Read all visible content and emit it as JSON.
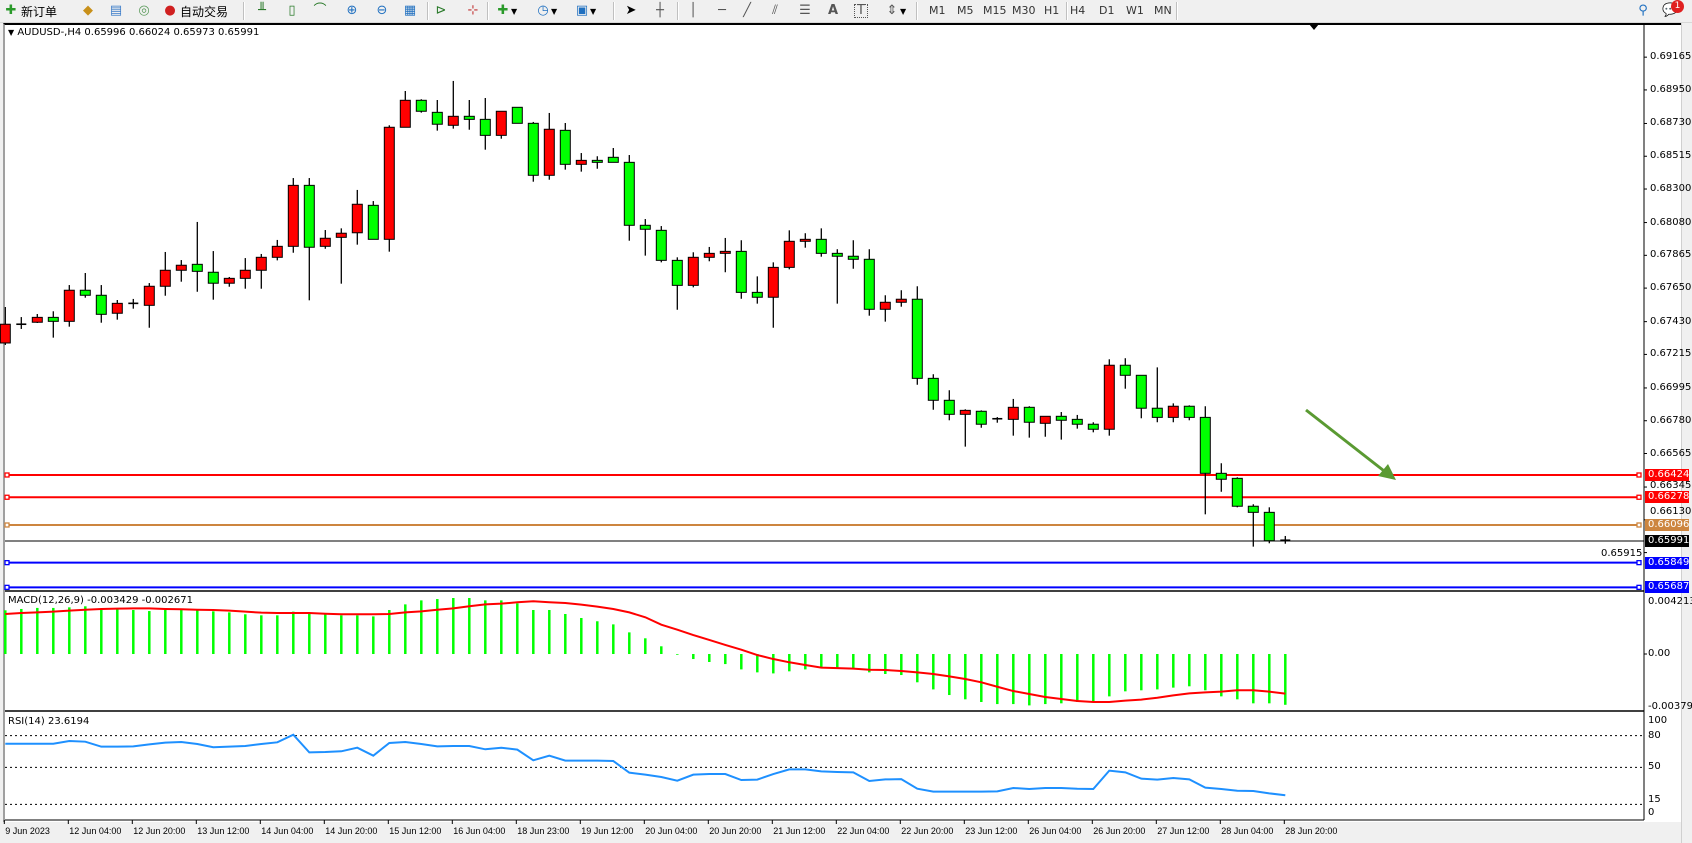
{
  "toolbar": {
    "new_order_label": "新订单",
    "auto_trading_label": "自动交易",
    "periods": [
      "M1",
      "M5",
      "M15",
      "M30",
      "H1",
      "H4",
      "D1",
      "W1",
      "MN"
    ],
    "notification_count": "1",
    "icons": [
      "new-order-icon",
      "market-watch-icon",
      "navigator-icon",
      "signals-icon",
      "auto-trading-icon",
      "bar-chart-icon",
      "candlestick-icon",
      "line-chart-icon",
      "zoom-in-icon",
      "zoom-out-icon",
      "tile-windows-icon",
      "auto-scroll-icon",
      "chart-shift-icon",
      "indicators-icon",
      "periods-clock-icon",
      "templates-icon",
      "cursor-icon",
      "crosshair-icon",
      "vertical-line-icon",
      "horizontal-line-icon",
      "trendline-icon",
      "equidistant-channel-icon",
      "fibonacci-icon",
      "text-icon",
      "text-label-icon",
      "arrows-icon",
      "search-icon",
      "chat-icon"
    ]
  },
  "chart": {
    "header": "AUDUSD-,H4  0.65996 0.66024 0.65973 0.65991"
  },
  "chart_data": [
    {
      "type": "candlestick",
      "symbol": "AUDUSD-",
      "timeframe": "H4",
      "up_color": "#ff0000",
      "down_color": "#00ff00",
      "ohlc": [
        [
          0.6729,
          0.67526,
          0.67277,
          0.67413
        ],
        [
          0.6741,
          0.6746,
          0.67382,
          0.67413
        ],
        [
          0.67426,
          0.6748,
          0.67421,
          0.67458
        ],
        [
          0.67458,
          0.67498,
          0.67325,
          0.67432
        ],
        [
          0.67432,
          0.6767,
          0.67397,
          0.67636
        ],
        [
          0.67636,
          0.67749,
          0.67587,
          0.67603
        ],
        [
          0.67603,
          0.6767,
          0.67423,
          0.67478
        ],
        [
          0.67485,
          0.67572,
          0.67443,
          0.6755
        ],
        [
          0.6755,
          0.67579,
          0.67515,
          0.67547
        ],
        [
          0.67537,
          0.67683,
          0.6739,
          0.67662
        ],
        [
          0.67662,
          0.67887,
          0.676,
          0.67767
        ],
        [
          0.67767,
          0.67834,
          0.67692,
          0.678
        ],
        [
          0.67806,
          0.68084,
          0.67626,
          0.6776
        ],
        [
          0.67754,
          0.67893,
          0.67574,
          0.67682
        ],
        [
          0.67682,
          0.67723,
          0.67659,
          0.67714
        ],
        [
          0.67714,
          0.67847,
          0.67646,
          0.67767
        ],
        [
          0.67767,
          0.67874,
          0.67646,
          0.67852
        ],
        [
          0.67852,
          0.67966,
          0.67832,
          0.67924
        ],
        [
          0.67924,
          0.68372,
          0.67882,
          0.68324
        ],
        [
          0.68324,
          0.68372,
          0.6757,
          0.67918
        ],
        [
          0.67924,
          0.68031,
          0.67908,
          0.67977
        ],
        [
          0.67983,
          0.68042,
          0.67679,
          0.6801
        ],
        [
          0.68013,
          0.68294,
          0.67935,
          0.682
        ],
        [
          0.68193,
          0.68221,
          0.6797,
          0.6797
        ],
        [
          0.6797,
          0.68718,
          0.67889,
          0.68705
        ],
        [
          0.68705,
          0.68943,
          0.68705,
          0.68882
        ],
        [
          0.68882,
          0.68889,
          0.68801,
          0.6881
        ],
        [
          0.68803,
          0.68884,
          0.68683,
          0.68725
        ],
        [
          0.68718,
          0.69009,
          0.68696,
          0.68777
        ],
        [
          0.68777,
          0.68884,
          0.68689,
          0.68757
        ],
        [
          0.68757,
          0.68897,
          0.68558,
          0.68652
        ],
        [
          0.68652,
          0.6881,
          0.6863,
          0.6881
        ],
        [
          0.68836,
          0.68836,
          0.68731,
          0.68731
        ],
        [
          0.68731,
          0.6874,
          0.68348,
          0.6839
        ],
        [
          0.6839,
          0.68799,
          0.68361,
          0.68692
        ],
        [
          0.68685,
          0.68733,
          0.68427,
          0.68462
        ],
        [
          0.68462,
          0.68536,
          0.68414,
          0.68488
        ],
        [
          0.68488,
          0.68515,
          0.68433,
          0.68475
        ],
        [
          0.68508,
          0.68569,
          0.68475,
          0.68475
        ],
        [
          0.68475,
          0.68523,
          0.67961,
          0.68062
        ],
        [
          0.68062,
          0.68103,
          0.67863,
          0.68036
        ],
        [
          0.68029,
          0.68057,
          0.67819,
          0.67832
        ],
        [
          0.67832,
          0.67852,
          0.67508,
          0.67668
        ],
        [
          0.67668,
          0.67885,
          0.67655,
          0.67852
        ],
        [
          0.67852,
          0.6792,
          0.67826,
          0.67878
        ],
        [
          0.67878,
          0.67979,
          0.67754,
          0.67891
        ],
        [
          0.67891,
          0.67964,
          0.6758,
          0.67622
        ],
        [
          0.67622,
          0.67727,
          0.67548,
          0.6759
        ],
        [
          0.6759,
          0.67819,
          0.6739,
          0.67786
        ],
        [
          0.67786,
          0.68029,
          0.67773,
          0.67957
        ],
        [
          0.67957,
          0.6801,
          0.67915,
          0.6797
        ],
        [
          0.6797,
          0.68042,
          0.67856,
          0.67878
        ],
        [
          0.67878,
          0.67905,
          0.67548,
          0.67859
        ],
        [
          0.67859,
          0.67964,
          0.67777,
          0.67839
        ],
        [
          0.67839,
          0.67905,
          0.67469,
          0.67511
        ],
        [
          0.67511,
          0.67603,
          0.6743,
          0.67557
        ],
        [
          0.67557,
          0.67636,
          0.67528,
          0.67577
        ],
        [
          0.67577,
          0.67662,
          0.67016,
          0.67058
        ],
        [
          0.67058,
          0.67085,
          0.66852,
          0.66914
        ],
        [
          0.66914,
          0.6698,
          0.66783,
          0.66822
        ],
        [
          0.66822,
          0.66855,
          0.6661,
          0.66848
        ],
        [
          0.66842,
          0.66848,
          0.66734,
          0.66757
        ],
        [
          0.6679,
          0.66804,
          0.66767,
          0.66793
        ],
        [
          0.66789,
          0.66923,
          0.66682,
          0.66868
        ],
        [
          0.66868,
          0.66875,
          0.66669,
          0.6677
        ],
        [
          0.66763,
          0.66809,
          0.66675,
          0.66809
        ],
        [
          0.66809,
          0.66837,
          0.66656,
          0.66783
        ],
        [
          0.66789,
          0.66818,
          0.66728,
          0.66757
        ],
        [
          0.66757,
          0.6677,
          0.66704,
          0.66724
        ],
        [
          0.66724,
          0.67183,
          0.66682,
          0.67144
        ],
        [
          0.67144,
          0.6719,
          0.6699,
          0.67078
        ],
        [
          0.67078,
          0.67078,
          0.66796,
          0.66862
        ],
        [
          0.66862,
          0.6713,
          0.6677,
          0.66802
        ],
        [
          0.66802,
          0.66894,
          0.6677,
          0.66875
        ],
        [
          0.66875,
          0.66881,
          0.66783,
          0.66802
        ],
        [
          0.66802,
          0.66875,
          0.66166,
          0.66435
        ],
        [
          0.66435,
          0.66501,
          0.66314,
          0.66396
        ],
        [
          0.66402,
          0.66409,
          0.66212,
          0.66219
        ],
        [
          0.66219,
          0.66232,
          0.65954,
          0.66179
        ],
        [
          0.66179,
          0.66212,
          0.65976,
          0.65993
        ],
        [
          0.65996,
          0.66024,
          0.65973,
          0.65991
        ]
      ],
      "y_ticks": [
        "0.69165",
        "0.68950",
        "0.68730",
        "0.68515",
        "0.68300",
        "0.68080",
        "0.67865",
        "0.67650",
        "0.67430",
        "0.67215",
        "0.66995",
        "0.66780",
        "0.66565",
        "0.66345",
        "0.66130",
        "0.65915"
      ],
      "x_ticks": [
        {
          "label": "9 Jun 2023",
          "bar": 0
        },
        {
          "label": "12 Jun 04:00",
          "bar": 4
        },
        {
          "label": "12 Jun 20:00",
          "bar": 8
        },
        {
          "label": "13 Jun 12:00",
          "bar": 12
        },
        {
          "label": "14 Jun 04:00",
          "bar": 16
        },
        {
          "label": "14 Jun 20:00",
          "bar": 20
        },
        {
          "label": "15 Jun 12:00",
          "bar": 24
        },
        {
          "label": "16 Jun 04:00",
          "bar": 28
        },
        {
          "label": "18 Jun 23:00",
          "bar": 32
        },
        {
          "label": "19 Jun 12:00",
          "bar": 36
        },
        {
          "label": "20 Jun 04:00",
          "bar": 40
        },
        {
          "label": "20 Jun 20:00",
          "bar": 44
        },
        {
          "label": "21 Jun 12:00",
          "bar": 48
        },
        {
          "label": "22 Jun 04:00",
          "bar": 52
        },
        {
          "label": "22 Jun 20:00",
          "bar": 56
        },
        {
          "label": "23 Jun 12:00",
          "bar": 60
        },
        {
          "label": "26 Jun 04:00",
          "bar": 64
        },
        {
          "label": "26 Jun 20:00",
          "bar": 68
        },
        {
          "label": "27 Jun 12:00",
          "bar": 72
        },
        {
          "label": "28 Jun 04:00",
          "bar": 76
        },
        {
          "label": "28 Jun 20:00",
          "bar": 80
        }
      ],
      "price_lines": [
        {
          "value": "0.66424",
          "color": "#ff0000"
        },
        {
          "value": "0.66278",
          "color": "#ff0000"
        },
        {
          "value": "0.66096",
          "color": "#cd853f"
        },
        {
          "value": "0.65849",
          "color": "#0000ff"
        },
        {
          "value": "0.65687",
          "color": "#0000ff"
        }
      ],
      "bid_line": {
        "value": "0.65991",
        "color": "#000000"
      },
      "arrow_color": "#5a9a32"
    },
    {
      "type": "bar+line",
      "label": "MACD(12,26,9) -0.003429 -0.002671",
      "ylim": [
        -0.003792,
        0.004213
      ],
      "y_ticks": [
        "0.004213",
        "0.00",
        "-0.003792"
      ],
      "histogram_color": "#00ff00",
      "signal_color": "#ff0000",
      "histogram": [
        0.00295,
        0.00304,
        0.00311,
        0.00311,
        0.00315,
        0.00322,
        0.00304,
        0.00304,
        0.00297,
        0.0029,
        0.00297,
        0.00297,
        0.00297,
        0.00288,
        0.00281,
        0.00268,
        0.00261,
        0.00261,
        0.00286,
        0.0027,
        0.0027,
        0.00261,
        0.00261,
        0.00254,
        0.00297,
        0.00335,
        0.00362,
        0.00371,
        0.00378,
        0.00378,
        0.00362,
        0.00362,
        0.00342,
        0.00297,
        0.00297,
        0.0027,
        0.00243,
        0.00221,
        0.002,
        0.00146,
        0.00106,
        0.00052,
        -5e-05,
        -0.00034,
        -0.00054,
        -0.00068,
        -0.00104,
        -0.00124,
        -0.00131,
        -0.00117,
        -0.00104,
        -0.00097,
        -0.00095,
        -0.00099,
        -0.00124,
        -0.00135,
        -0.00142,
        -0.00191,
        -0.00239,
        -0.00277,
        -0.00306,
        -0.00324,
        -0.00338,
        -0.00338,
        -0.00347,
        -0.00338,
        -0.00333,
        -0.00324,
        -0.0032,
        -0.00286,
        -0.00252,
        -0.00245,
        -0.00239,
        -0.00227,
        -0.00218,
        -0.00245,
        -0.00286,
        -0.00306,
        -0.00333,
        -0.00333,
        -0.003429
      ],
      "signal": [
        0.0027,
        0.00277,
        0.00281,
        0.00286,
        0.00293,
        0.00299,
        0.00304,
        0.00306,
        0.00308,
        0.00308,
        0.00304,
        0.00302,
        0.00299,
        0.00297,
        0.00293,
        0.00286,
        0.00279,
        0.00277,
        0.00277,
        0.00277,
        0.00272,
        0.00268,
        0.00268,
        0.00268,
        0.0027,
        0.00281,
        0.00288,
        0.00299,
        0.00308,
        0.00322,
        0.00335,
        0.0034,
        0.00349,
        0.00356,
        0.00349,
        0.00344,
        0.00333,
        0.0032,
        0.00304,
        0.00281,
        0.00248,
        0.00198,
        0.00164,
        0.00128,
        0.00095,
        0.00061,
        0.00029,
        -7e-05,
        -0.00034,
        -0.00056,
        -0.00074,
        -0.00092,
        -0.00095,
        -0.00099,
        -0.00106,
        -0.00108,
        -0.00115,
        -0.00124,
        -0.00135,
        -0.00151,
        -0.00169,
        -0.00191,
        -0.00221,
        -0.0025,
        -0.0027,
        -0.0029,
        -0.00304,
        -0.00317,
        -0.00324,
        -0.00324,
        -0.00315,
        -0.00308,
        -0.00295,
        -0.00279,
        -0.00266,
        -0.00259,
        -0.00254,
        -0.00245,
        -0.00245,
        -0.00254,
        -0.002671
      ]
    },
    {
      "type": "line",
      "label": "RSI(14) 23.6194",
      "ylim": [
        0,
        100
      ],
      "levels": [
        80,
        50,
        15
      ],
      "y_ticks": [
        "100",
        "80",
        "50",
        "15",
        "0"
      ],
      "line_color": "#1e90ff",
      "values": [
        72.4,
        72.4,
        72.4,
        72.4,
        74.9,
        74.3,
        69.6,
        69.6,
        69.9,
        71.8,
        73.4,
        74.0,
        72.1,
        69.0,
        69.6,
        70.2,
        72.1,
        73.7,
        80.9,
        64.2,
        64.5,
        65.2,
        68.6,
        61.1,
        73.1,
        74.0,
        72.1,
        69.9,
        70.2,
        70.2,
        67.1,
        68.6,
        66.8,
        56.7,
        61.1,
        56.4,
        56.4,
        56.4,
        56.0,
        45.0,
        43.1,
        40.9,
        37.4,
        43.1,
        43.7,
        43.7,
        38.0,
        38.4,
        43.7,
        48.1,
        48.1,
        46.2,
        45.6,
        45.3,
        37.1,
        38.6,
        38.9,
        29.8,
        27.0,
        27.0,
        27.0,
        27.0,
        27.3,
        30.5,
        29.5,
        30.5,
        30.5,
        29.8,
        29.5,
        46.9,
        45.3,
        39.3,
        38.4,
        39.9,
        38.6,
        30.8,
        29.5,
        27.9,
        27.6,
        25.4,
        23.62
      ]
    }
  ]
}
